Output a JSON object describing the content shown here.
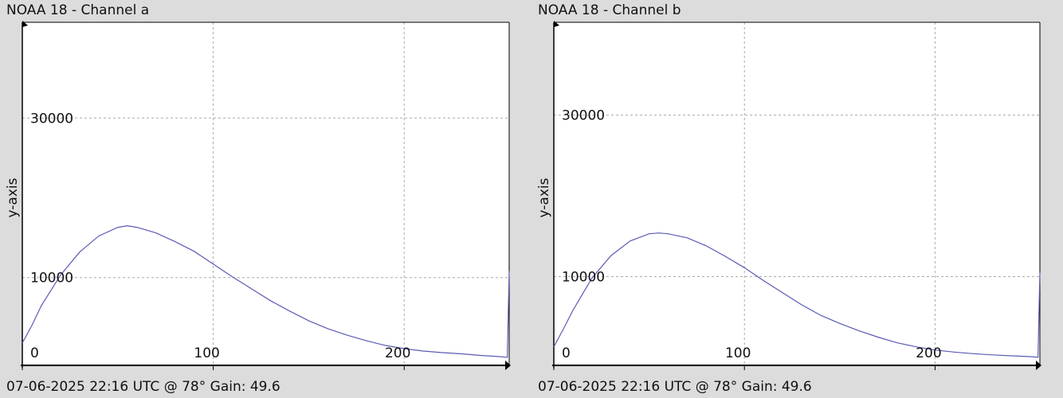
{
  "panels": [
    {
      "title": "NOAA 18 - Channel a",
      "footer": "07-06-2025 22:16 UTC @ 78° Gain: 49.6"
    },
    {
      "title": "NOAA 18 - Channel b",
      "footer": "07-06-2025 22:16 UTC @ 78° Gain: 49.6"
    }
  ],
  "colors": {
    "background": "#dcdcdc",
    "plot_bg": "#ffffff",
    "line": "#5a5ab4",
    "grid": "#aaaaaa"
  },
  "chart_data": [
    {
      "type": "line",
      "title": "NOAA 18 - Channel a",
      "xlabel": "",
      "ylabel": "y-axis",
      "xlim": [
        0,
        255
      ],
      "ylim": [
        -1000,
        42000
      ],
      "xticks": [
        0,
        100,
        200
      ],
      "yticks": [
        10000,
        30000
      ],
      "grid": true,
      "x": [
        0,
        5,
        10,
        20,
        30,
        40,
        50,
        55,
        60,
        70,
        80,
        90,
        100,
        110,
        120,
        130,
        140,
        150,
        160,
        170,
        180,
        190,
        200,
        210,
        220,
        230,
        240,
        250,
        254,
        255
      ],
      "y": [
        1800,
        4000,
        6500,
        10300,
        13200,
        15200,
        16300,
        16500,
        16300,
        15600,
        14500,
        13300,
        11700,
        10100,
        8600,
        7100,
        5800,
        4600,
        3600,
        2800,
        2100,
        1500,
        1100,
        800,
        600,
        450,
        250,
        100,
        0,
        10800
      ]
    },
    {
      "type": "line",
      "title": "NOAA 18 - Channel b",
      "xlabel": "",
      "ylabel": "y-axis",
      "xlim": [
        0,
        255
      ],
      "ylim": [
        -1000,
        41500
      ],
      "xticks": [
        0,
        100,
        200
      ],
      "yticks": [
        10000,
        30000
      ],
      "grid": true,
      "x": [
        0,
        5,
        10,
        20,
        30,
        40,
        50,
        55,
        60,
        70,
        80,
        90,
        100,
        110,
        120,
        130,
        140,
        150,
        160,
        170,
        180,
        190,
        200,
        210,
        220,
        230,
        240,
        250,
        254,
        255
      ],
      "y": [
        1300,
        3500,
        5800,
        9800,
        12600,
        14400,
        15300,
        15400,
        15300,
        14800,
        13800,
        12500,
        11100,
        9500,
        8000,
        6500,
        5200,
        4200,
        3300,
        2500,
        1800,
        1300,
        900,
        650,
        450,
        300,
        180,
        80,
        0,
        10500
      ]
    }
  ]
}
